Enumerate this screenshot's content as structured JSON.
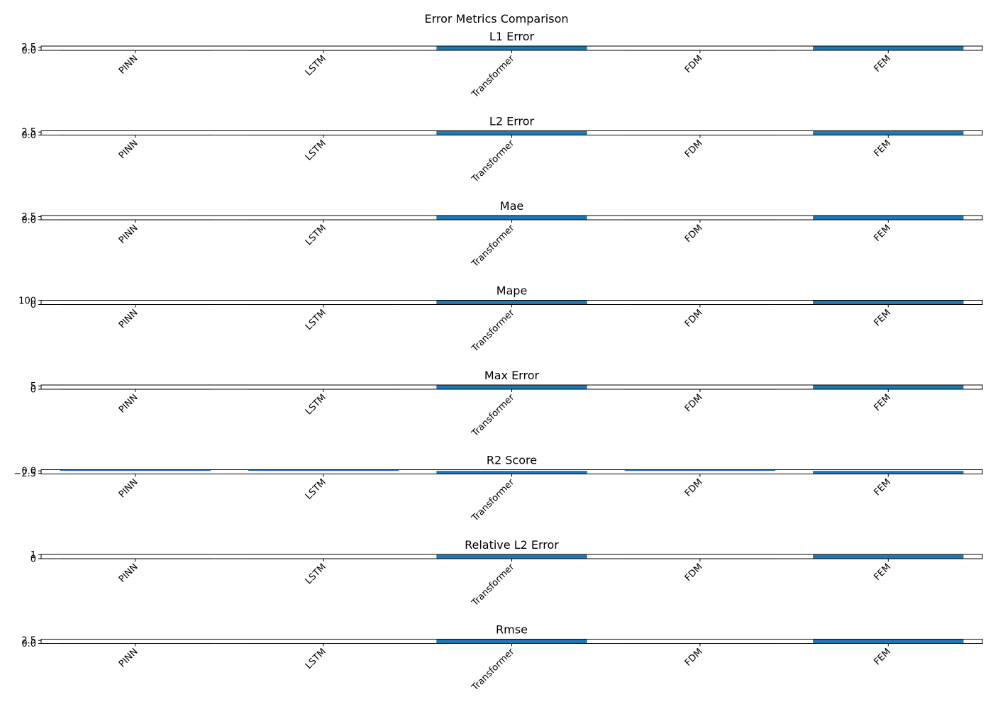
{
  "figure": {
    "title": "Error Metrics Comparison",
    "bar_color": "#1f77b4"
  },
  "chart_data": [
    {
      "type": "bar",
      "title": "L1 Error",
      "categories": [
        "PINN",
        "LSTM",
        "Transformer",
        "FDM",
        "FEM"
      ],
      "values": [
        0.01,
        0.01,
        3.3,
        0.01,
        3.3
      ],
      "ylim": [
        0,
        3.3
      ],
      "yticks": [
        0.0,
        2.5
      ],
      "ytick_labels": [
        "0.0",
        "2.5"
      ]
    },
    {
      "type": "bar",
      "title": "L2 Error",
      "categories": [
        "PINN",
        "LSTM",
        "Transformer",
        "FDM",
        "FEM"
      ],
      "values": [
        0.01,
        0.01,
        3.5,
        0.01,
        3.5
      ],
      "ylim": [
        0,
        3.5
      ],
      "yticks": [
        0.0,
        2.5
      ],
      "ytick_labels": [
        "0.0",
        "2.5"
      ]
    },
    {
      "type": "bar",
      "title": "Mae",
      "categories": [
        "PINN",
        "LSTM",
        "Transformer",
        "FDM",
        "FEM"
      ],
      "values": [
        0.01,
        0.01,
        3.3,
        0.01,
        3.3
      ],
      "ylim": [
        0,
        3.3
      ],
      "yticks": [
        0.0,
        2.5
      ],
      "ytick_labels": [
        "0.0",
        "2.5"
      ]
    },
    {
      "type": "bar",
      "title": "Mape",
      "categories": [
        "PINN",
        "LSTM",
        "Transformer",
        "FDM",
        "FEM"
      ],
      "values": [
        0.5,
        0.5,
        105,
        0.5,
        105
      ],
      "ylim": [
        0,
        105
      ],
      "yticks": [
        0,
        100
      ],
      "ytick_labels": [
        "0",
        "100"
      ]
    },
    {
      "type": "bar",
      "title": "Max Error",
      "categories": [
        "PINN",
        "LSTM",
        "Transformer",
        "FDM",
        "FEM"
      ],
      "values": [
        0.02,
        0.02,
        6.5,
        0.02,
        6.5
      ],
      "ylim": [
        0,
        6.5
      ],
      "yticks": [
        0,
        5
      ],
      "ytick_labels": [
        "0",
        "5"
      ]
    },
    {
      "type": "bar",
      "title": "R2 Score",
      "categories": [
        "PINN",
        "LSTM",
        "Transformer",
        "FDM",
        "FEM"
      ],
      "values": [
        1.0,
        1.0,
        -3.0,
        1.0,
        -3.0
      ],
      "ylim": [
        -3.2,
        1.2
      ],
      "yticks": [
        -2.5,
        0.0
      ],
      "ytick_labels": [
        "−2.5",
        "0.0"
      ]
    },
    {
      "type": "bar",
      "title": "Relative L2 Error",
      "categories": [
        "PINN",
        "LSTM",
        "Transformer",
        "FDM",
        "FEM"
      ],
      "values": [
        0.003,
        0.003,
        1.05,
        0.003,
        1.05
      ],
      "ylim": [
        0,
        1.05
      ],
      "yticks": [
        0,
        1
      ],
      "ytick_labels": [
        "0",
        "1"
      ]
    },
    {
      "type": "bar",
      "title": "Rmse",
      "categories": [
        "PINN",
        "LSTM",
        "Transformer",
        "FDM",
        "FEM"
      ],
      "values": [
        0.01,
        0.01,
        3.5,
        0.01,
        3.5
      ],
      "ylim": [
        0,
        3.5
      ],
      "yticks": [
        0.0,
        2.5
      ],
      "ytick_labels": [
        "0.0",
        "2.5"
      ]
    }
  ]
}
